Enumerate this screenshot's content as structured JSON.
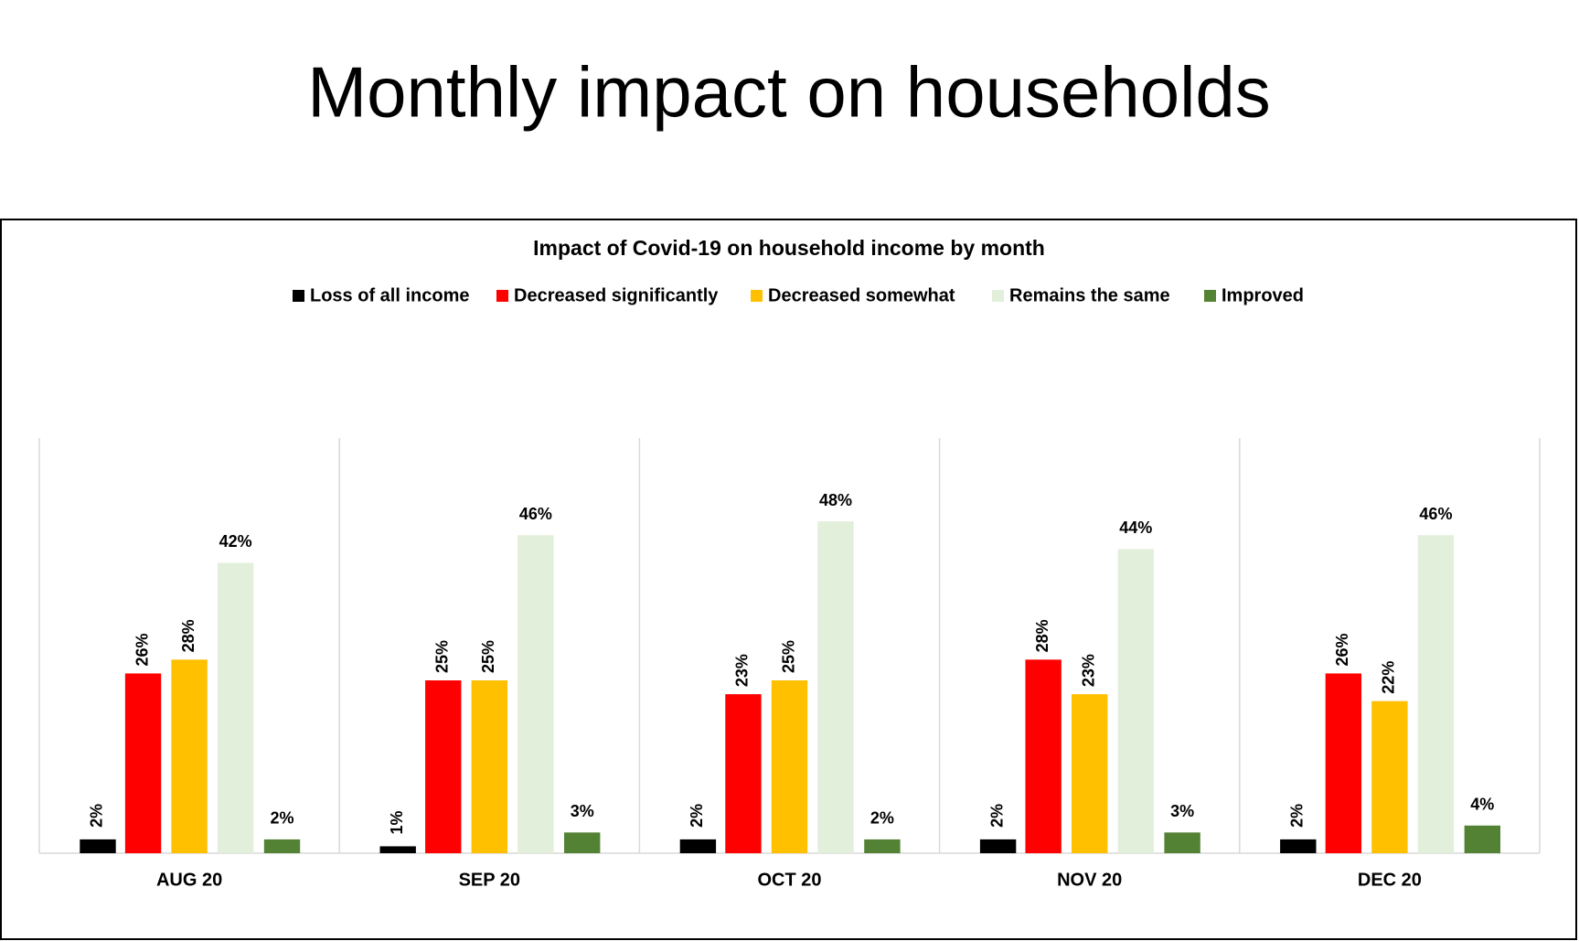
{
  "page_title": "Monthly impact on households",
  "chart_data": {
    "type": "bar",
    "title": "Impact of Covid-19 on household income by month",
    "categories": [
      "AUG 20",
      "SEP 20",
      "OCT 20",
      "NOV 20",
      "DEC 20"
    ],
    "series": [
      {
        "name": "Loss of all income",
        "color": "#000000",
        "values": [
          2,
          1,
          2,
          2,
          2
        ],
        "value_labels": [
          "2%",
          "1%",
          "2%",
          "2%",
          "2%"
        ]
      },
      {
        "name": "Decreased significantly",
        "color": "#ff0000",
        "values": [
          26,
          25,
          23,
          28,
          26
        ],
        "value_labels": [
          "26%",
          "25%",
          "23%",
          "28%",
          "26%"
        ]
      },
      {
        "name": "Decreased somewhat",
        "color": "#ffc000",
        "values": [
          28,
          25,
          25,
          23,
          22
        ],
        "value_labels": [
          "28%",
          "25%",
          "25%",
          "23%",
          "22%"
        ]
      },
      {
        "name": "Remains the same",
        "color": "#e2efda",
        "values": [
          42,
          46,
          48,
          44,
          46
        ],
        "value_labels": [
          "42%",
          "46%",
          "48%",
          "44%",
          "46%"
        ]
      },
      {
        "name": "Improved",
        "color": "#548235",
        "values": [
          2,
          3,
          2,
          3,
          4
        ],
        "value_labels": [
          "2%",
          "3%",
          "2%",
          "3%",
          "4%"
        ]
      }
    ],
    "legend": "top"
  }
}
